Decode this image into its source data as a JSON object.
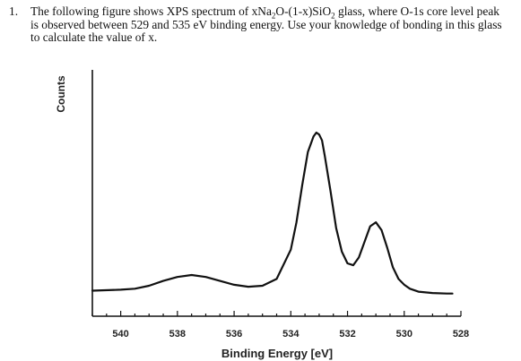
{
  "question": {
    "number": "1.",
    "text_part1": "The following figure shows XPS spectrum of xNa",
    "sub1": "2",
    "text_part2": "O-(1-x)SiO",
    "sub2": "2",
    "text_part3": " glass, where O-1s core level peak is observed between 529 and 535 eV binding energy. Use your knowledge of bonding in this glass to calculate the value of x."
  },
  "chart_data": {
    "type": "line",
    "title": "",
    "xlabel": "Binding Energy [eV]",
    "ylabel": "Counts",
    "x_reversed": true,
    "xlim": [
      541,
      528
    ],
    "ylim": [
      0,
      100
    ],
    "x_ticks": [
      540,
      538,
      536,
      534,
      532,
      530,
      528
    ],
    "grid": false,
    "legend": "none",
    "series": [
      {
        "x": [
          541,
          540,
          539.5,
          539,
          538.5,
          538,
          537.5,
          537,
          536.5,
          536,
          535.5,
          535,
          534.5,
          534,
          533.8,
          533.6,
          533.4,
          533.2,
          533.1,
          533.0,
          532.9,
          532.8,
          532.6,
          532.4,
          532.2,
          532.0,
          531.8,
          531.6,
          531.4,
          531.2,
          531.0,
          530.8,
          530.6,
          530.4,
          530.2,
          530.0,
          529.8,
          529.5,
          529.0,
          528.5,
          528.3
        ],
        "y": [
          3,
          3.5,
          4,
          5.5,
          8,
          10,
          11,
          10,
          8,
          6,
          5,
          5.5,
          9,
          24,
          38,
          57,
          74,
          82,
          84,
          83,
          80,
          72,
          54,
          35,
          23,
          17,
          16,
          20,
          28,
          36,
          38,
          34,
          25,
          15,
          9,
          6,
          4,
          2.5,
          1.8,
          1.5,
          1.5
        ]
      }
    ]
  }
}
